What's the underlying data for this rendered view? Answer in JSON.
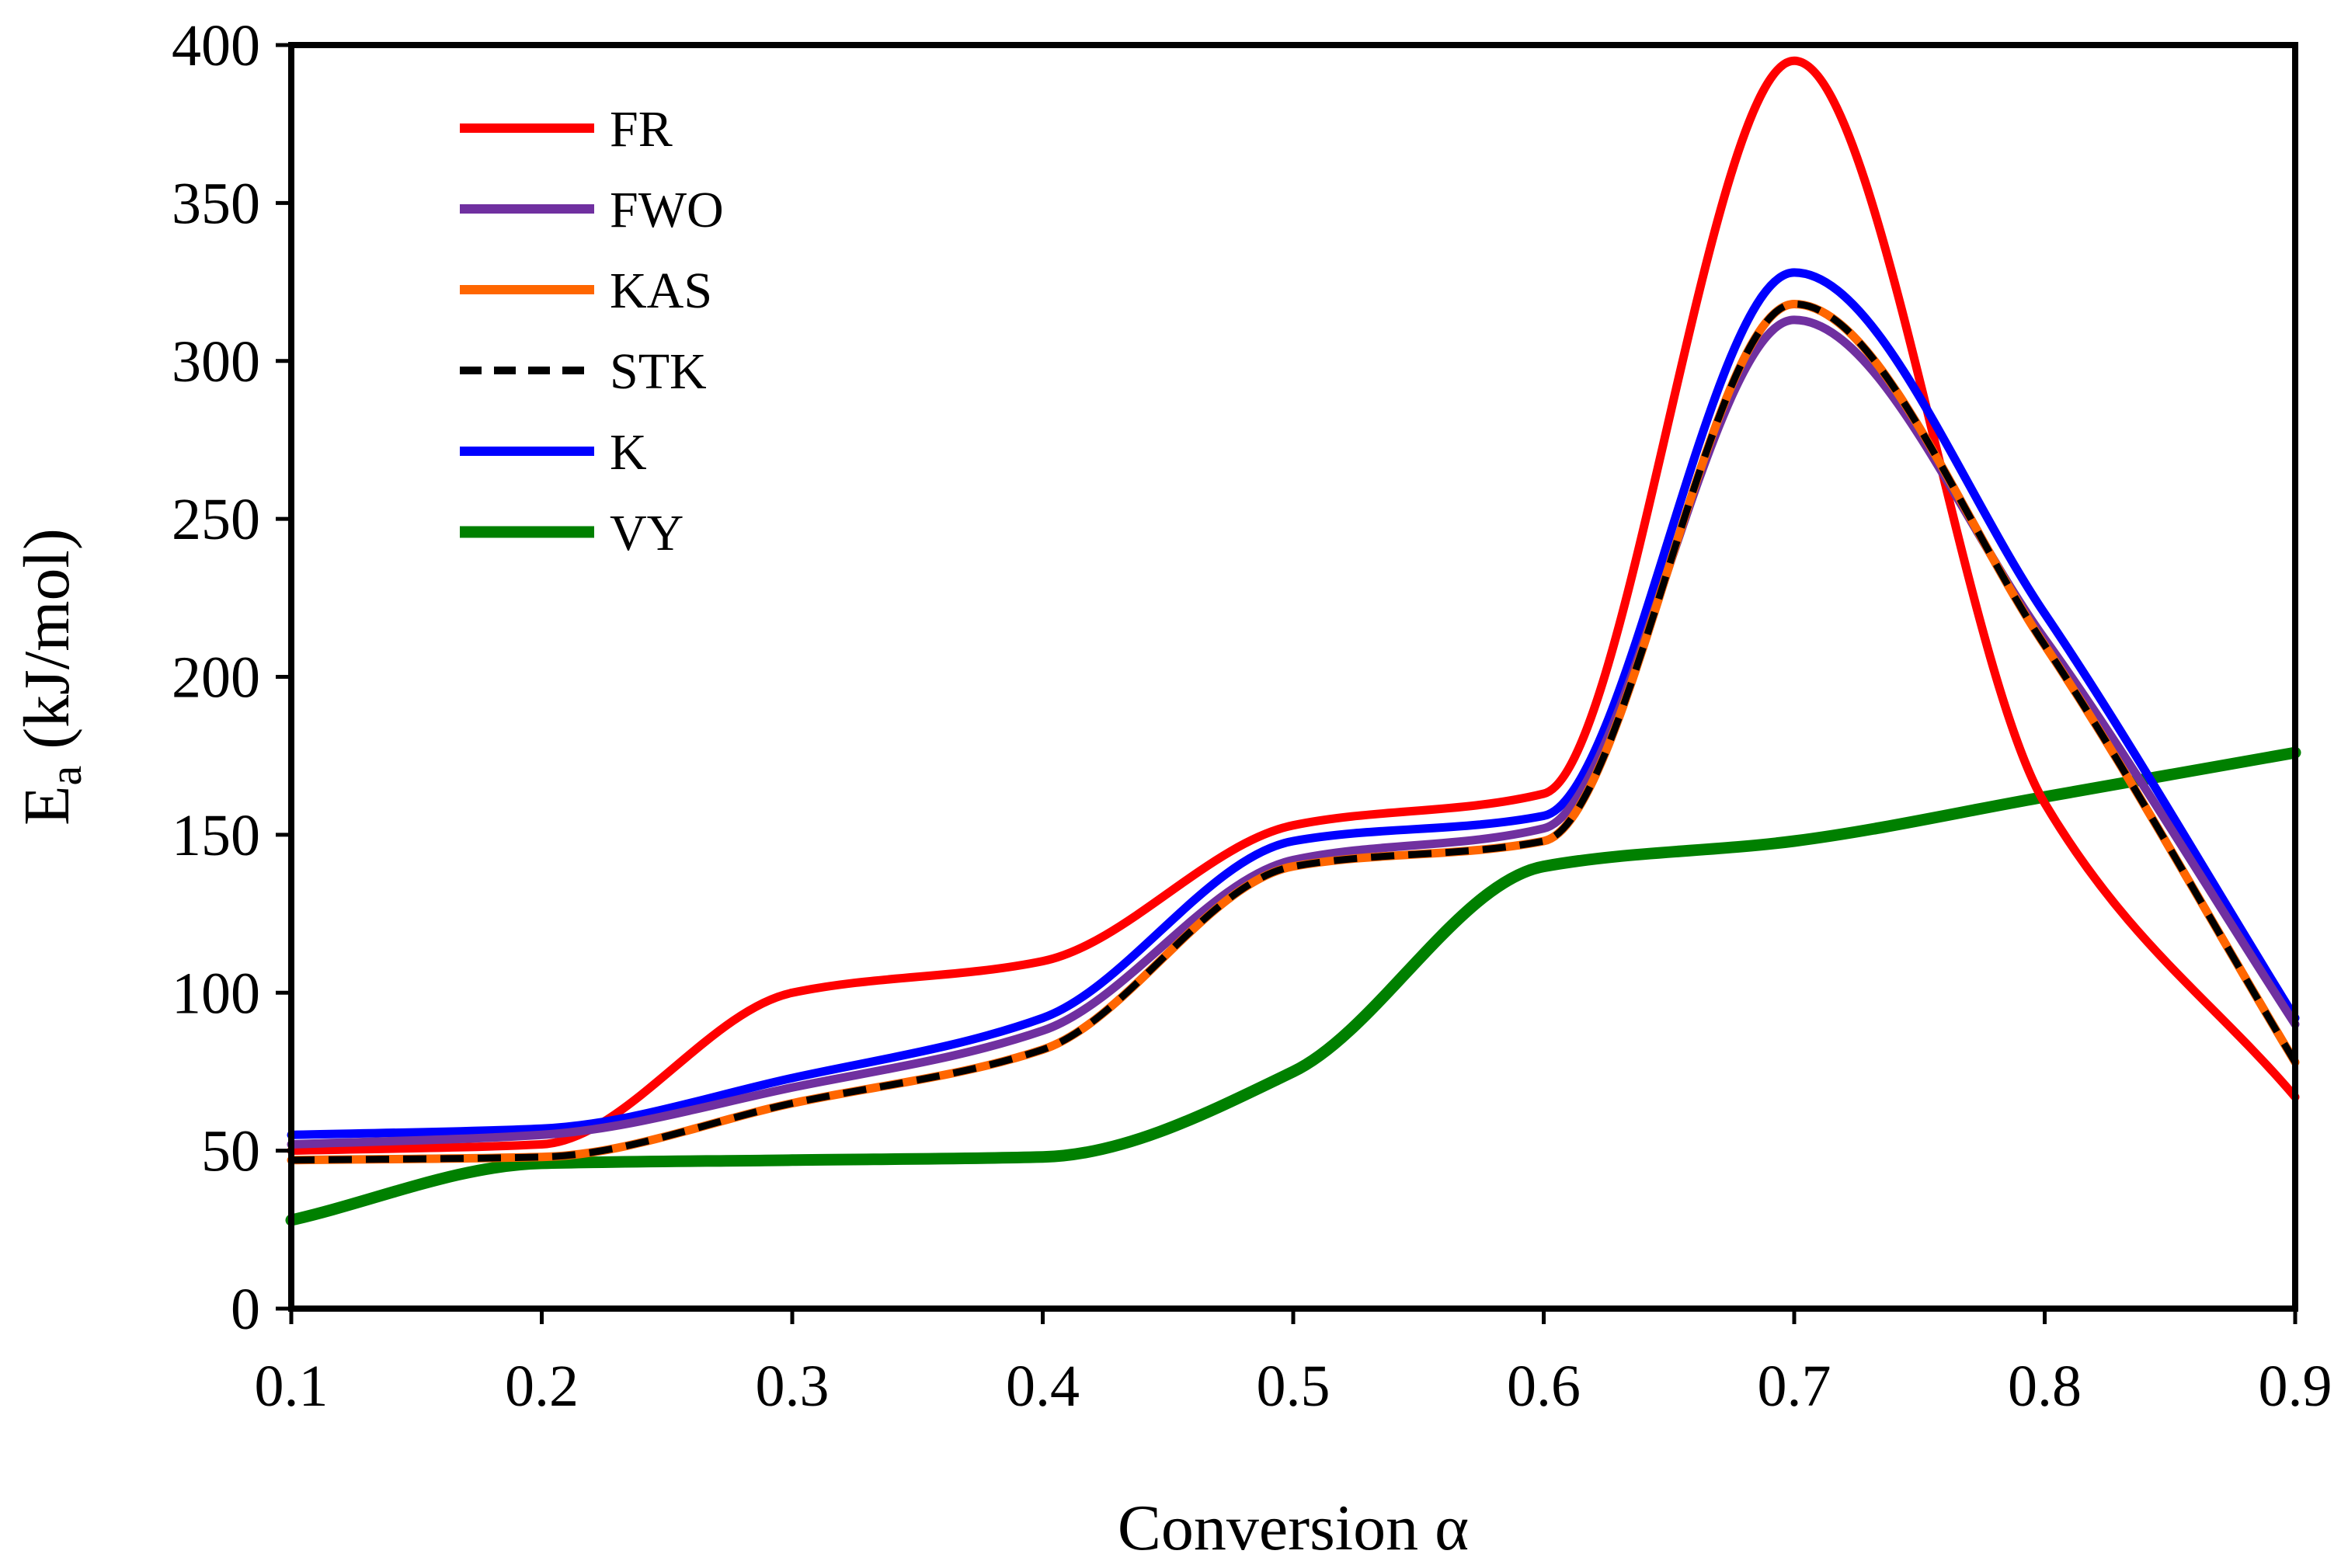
{
  "chart_data": {
    "type": "line",
    "title": "",
    "xlabel": "Conversion α",
    "ylabel_main": "E",
    "ylabel_sub": "a",
    "ylabel_rest": " (kJ/mol)",
    "xlim": [
      0.1,
      0.9
    ],
    "ylim": [
      0,
      400
    ],
    "x_ticks": [
      0.1,
      0.2,
      0.3,
      0.4,
      0.5,
      0.6,
      0.7,
      0.8,
      0.9
    ],
    "x_tick_labels": [
      "0.1",
      "0.2",
      "0.3",
      "0.4",
      "0.5",
      "0.6",
      "0.7",
      "0.8",
      "0.9"
    ],
    "y_ticks": [
      0,
      50,
      100,
      150,
      200,
      250,
      300,
      350,
      400
    ],
    "y_tick_labels": [
      "0",
      "50",
      "100",
      "150",
      "200",
      "250",
      "300",
      "350",
      "400"
    ],
    "grid": false,
    "legend_position": "top-left",
    "x": [
      0.1,
      0.2,
      0.3,
      0.4,
      0.5,
      0.6,
      0.7,
      0.8,
      0.9
    ],
    "series": [
      {
        "name": "FR",
        "color": "#ff0000",
        "dashed": false,
        "values": [
          50,
          52,
          100,
          110,
          153,
          163,
          395,
          160,
          67
        ]
      },
      {
        "name": "FWO",
        "color": "#7030a0",
        "dashed": false,
        "values": [
          52,
          55,
          70,
          88,
          142,
          152,
          313,
          212,
          90
        ]
      },
      {
        "name": "KAS",
        "color": "#ff6600",
        "dashed": false,
        "values": [
          47,
          48,
          65,
          82,
          140,
          148,
          318,
          210,
          78
        ]
      },
      {
        "name": "STK",
        "color": "#000000",
        "dashed": true,
        "values": [
          47,
          48,
          65,
          82,
          140,
          148,
          318,
          210,
          78
        ]
      },
      {
        "name": "K",
        "color": "#0000ff",
        "dashed": false,
        "values": [
          55,
          57,
          73,
          92,
          148,
          156,
          328,
          220,
          92
        ]
      },
      {
        "name": "VY",
        "color": "#008000",
        "dashed": false,
        "values": [
          28,
          46,
          47,
          48,
          75,
          140,
          148,
          162,
          176
        ]
      }
    ]
  }
}
